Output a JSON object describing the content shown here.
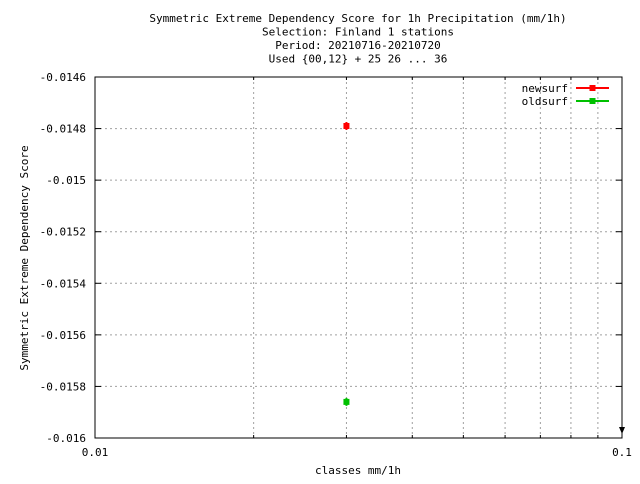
{
  "chart_data": {
    "type": "scatter",
    "title_lines": [
      "Symmetric Extreme Dependency Score  for 1h Precipitation (mm/1h)",
      "Selection: Finland      1 stations",
      "Period: 20210716-20210720",
      "Used {00,12} + 25 26 ... 36"
    ],
    "xlabel": "classes mm/1h",
    "ylabel": "Symmetric Extreme Dependency Score",
    "x_scale": "log",
    "xlim": [
      0.01,
      0.1
    ],
    "ylim": [
      -0.016,
      -0.0146
    ],
    "x_tick_labels": [
      "0.01",
      "0.1"
    ],
    "y_tick_labels": [
      "-0.0146",
      "-0.0148",
      "-0.015",
      "-0.0152",
      "-0.0154",
      "-0.0156",
      "-0.0158",
      "-0.016"
    ],
    "y_ticks": [
      -0.0146,
      -0.0148,
      -0.015,
      -0.0152,
      -0.0154,
      -0.0156,
      -0.0158,
      -0.016
    ],
    "grid": true,
    "legend_position": "top-right",
    "series": [
      {
        "name": "newsurf",
        "color": "#ff0000",
        "points": [
          {
            "x": 0.03,
            "y": -0.01479
          }
        ]
      },
      {
        "name": "oldsurf",
        "color": "#00c000",
        "points": [
          {
            "x": 0.03,
            "y": -0.01586
          }
        ]
      }
    ]
  }
}
